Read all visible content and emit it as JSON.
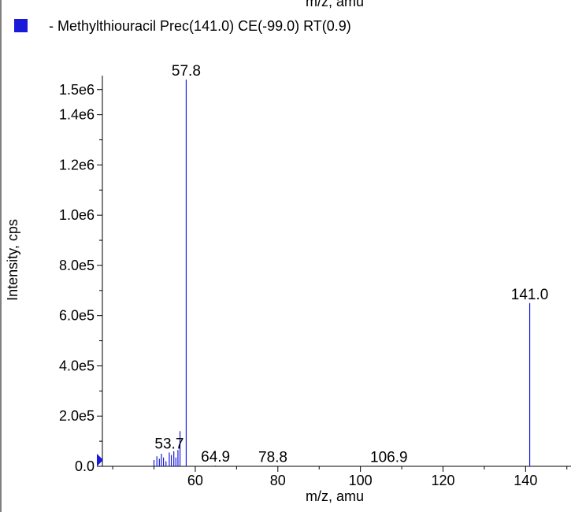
{
  "chart_data": {
    "type": "bar",
    "top_clipped_label": "m/z, amu",
    "legend": {
      "label": "- Methylthiouracil Prec(141.0) CE(-99.0) RT(0.9)",
      "color": "#1a1adb"
    },
    "xlabel": "m/z, amu",
    "ylabel": "Intensity, cps",
    "xlim": [
      37.5,
      151.0
    ],
    "ylim": [
      0,
      1540000
    ],
    "x_ticks": [
      60,
      80,
      100,
      120,
      140
    ],
    "x_tick_labels": [
      "60",
      "80",
      "100",
      "120",
      "140"
    ],
    "y_ticks": [
      0,
      200000,
      400000,
      600000,
      800000,
      1000000,
      1200000,
      1400000,
      1500000
    ],
    "y_tick_labels": [
      "0.0",
      "2.0e5",
      "4.0e5",
      "6.0e5",
      "8.0e5",
      "1.0e6",
      "1.2e6",
      "1.4e6",
      "1.5e6"
    ],
    "series": [
      {
        "name": "Methylthiouracil Prec(141.0) CE(-99.0) RT(0.9)",
        "color": "#1a1adb",
        "x": [
          50.0,
          50.7,
          51.3,
          51.8,
          52.3,
          52.9,
          53.7,
          54.2,
          54.8,
          55.3,
          55.8,
          56.3,
          57.8,
          64.9,
          78.8,
          106.9,
          141.0
        ],
        "y": [
          25000,
          40000,
          30000,
          50000,
          35000,
          20000,
          55000,
          45000,
          60000,
          35000,
          65000,
          140000,
          1540000,
          3000,
          2000,
          1000,
          650000
        ]
      }
    ],
    "peak_labels": [
      {
        "x": 57.8,
        "y": 1540000,
        "text": "57.8"
      },
      {
        "x": 53.7,
        "y": 55000,
        "text": "53.7"
      },
      {
        "x": 64.9,
        "y": 3000,
        "text": "64.9"
      },
      {
        "x": 78.8,
        "y": 2000,
        "text": "78.8"
      },
      {
        "x": 106.9,
        "y": 1000,
        "text": "106.9"
      },
      {
        "x": 141.0,
        "y": 650000,
        "text": "141.0"
      }
    ]
  }
}
